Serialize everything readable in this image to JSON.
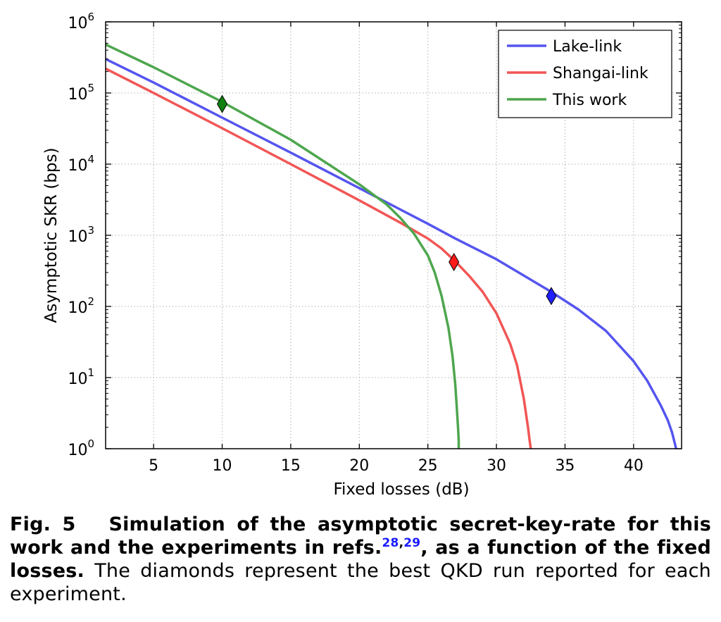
{
  "chart_data": {
    "type": "line",
    "ylog": true,
    "xlabel": "Fixed losses (dB)",
    "ylabel": "Asymptotic SKR (bps)",
    "xlim": [
      1.5,
      43.5
    ],
    "ylim": [
      1,
      1000000
    ],
    "xticks": [
      5,
      10,
      15,
      20,
      25,
      30,
      35,
      40
    ],
    "yticks": [
      {
        "value": 1,
        "base": "10",
        "exp": "0"
      },
      {
        "value": 10,
        "base": "10",
        "exp": "1"
      },
      {
        "value": 100,
        "base": "10",
        "exp": "2"
      },
      {
        "value": 1000,
        "base": "10",
        "exp": "3"
      },
      {
        "value": 10000,
        "base": "10",
        "exp": "4"
      },
      {
        "value": 100000,
        "base": "10",
        "exp": "5"
      },
      {
        "value": 1000000,
        "base": "10",
        "exp": "6"
      }
    ],
    "grid": true,
    "legend_position": "top-right",
    "series": [
      {
        "name": "Lake-link",
        "color": "#5555f0",
        "x": [
          1.5,
          5,
          10,
          15,
          20,
          23,
          25,
          27,
          30,
          34,
          36,
          38,
          40,
          41,
          42,
          42.5,
          42.8,
          43.0,
          43.1
        ],
        "y": [
          300000,
          140000,
          45000,
          14500,
          4600,
          2300,
          1450,
          900,
          460,
          160,
          90,
          45,
          17,
          9,
          4,
          2.5,
          1.7,
          1.2,
          1.0
        ],
        "marker": {
          "x": 34,
          "y": 140,
          "color": "#1f1fff"
        }
      },
      {
        "name": "Shangai-link",
        "color": "#f25555",
        "x": [
          1.5,
          5,
          10,
          15,
          20,
          23,
          25,
          26,
          27,
          28,
          29,
          30,
          31,
          31.5,
          32,
          32.3,
          32.4,
          32.5
        ],
        "y": [
          220000,
          100000,
          32000,
          10000,
          3100,
          1500,
          900,
          650,
          430,
          270,
          160,
          80,
          30,
          15,
          5,
          2,
          1.4,
          1.0
        ],
        "marker": {
          "x": 26.9,
          "y": 420,
          "color": "#ff1a1a"
        }
      },
      {
        "name": "This work",
        "color": "#4ea64e",
        "x": [
          1.5,
          5,
          10,
          15,
          20,
          22,
          23,
          24,
          25,
          25.5,
          26,
          26.5,
          26.8,
          27.0,
          27.1,
          27.2,
          27.25,
          27.25
        ],
        "y": [
          480000,
          230000,
          75000,
          22000,
          5200,
          2700,
          1750,
          1050,
          520,
          300,
          140,
          50,
          20,
          8,
          4,
          2,
          1.3,
          1.0
        ],
        "marker": {
          "x": 10,
          "y": 70000,
          "color": "#108010"
        }
      }
    ]
  },
  "caption": {
    "fig_label": "Fig. 5",
    "title_part1": "Simulation of the asymptotic secret-key-rate for this work and the experiments in refs.",
    "ref1": "28",
    "ref_sep": ",",
    "ref2": "29",
    "title_part2": ", as a function of the fixed losses.",
    "body": "The diamonds represent the best QKD run reported for each experiment."
  }
}
